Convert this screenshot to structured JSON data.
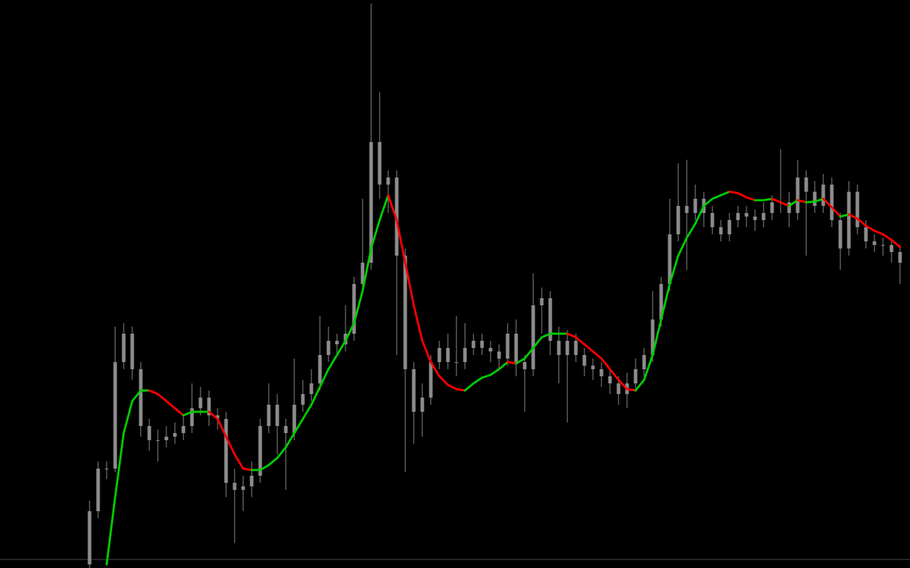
{
  "chart_data": {
    "type": "candlestick",
    "ylim": [
      0,
      800
    ],
    "candle_color": "#8c8c8c",
    "background": "#000000",
    "open": [
      5,
      80,
      140,
      140,
      290,
      330,
      280,
      200,
      180,
      180,
      185,
      190,
      200,
      225,
      240,
      215,
      210,
      120,
      110,
      115,
      130,
      200,
      230,
      200,
      190,
      230,
      245,
      260,
      300,
      320,
      315,
      330,
      400,
      430,
      600,
      540,
      550,
      440,
      280,
      220,
      240,
      290,
      310,
      290,
      290,
      310,
      320,
      310,
      305,
      295,
      330,
      290,
      280,
      370,
      380,
      320,
      300,
      320,
      300,
      285,
      280,
      270,
      260,
      245,
      260,
      280,
      300,
      350,
      400,
      470,
      510,
      500,
      520,
      500,
      480,
      470,
      490,
      500,
      495,
      490,
      500,
      515,
      515,
      500,
      550,
      530,
      510,
      540,
      490,
      450,
      530,
      480,
      460,
      455,
      455,
      445
    ],
    "high": [
      95,
      150,
      150,
      340,
      345,
      340,
      290,
      210,
      195,
      200,
      205,
      215,
      260,
      255,
      250,
      225,
      220,
      140,
      130,
      150,
      210,
      260,
      245,
      210,
      295,
      265,
      280,
      355,
      340,
      330,
      370,
      410,
      520,
      795,
      670,
      560,
      560,
      450,
      290,
      260,
      300,
      320,
      330,
      355,
      345,
      330,
      330,
      320,
      315,
      345,
      350,
      300,
      415,
      395,
      390,
      340,
      335,
      330,
      310,
      295,
      290,
      280,
      270,
      275,
      295,
      310,
      390,
      410,
      520,
      570,
      575,
      540,
      530,
      510,
      490,
      500,
      510,
      510,
      505,
      515,
      525,
      590,
      530,
      575,
      560,
      545,
      555,
      550,
      500,
      545,
      540,
      490,
      470,
      465,
      460,
      455
    ],
    "low": [
      0,
      70,
      125,
      135,
      280,
      265,
      185,
      165,
      150,
      170,
      175,
      180,
      190,
      215,
      200,
      195,
      100,
      35,
      80,
      100,
      120,
      190,
      160,
      110,
      180,
      220,
      235,
      250,
      290,
      300,
      305,
      320,
      390,
      420,
      520,
      500,
      300,
      135,
      175,
      185,
      230,
      280,
      280,
      270,
      280,
      300,
      300,
      290,
      280,
      285,
      270,
      220,
      270,
      330,
      300,
      260,
      205,
      290,
      270,
      265,
      255,
      245,
      230,
      225,
      250,
      270,
      290,
      340,
      390,
      460,
      420,
      490,
      480,
      470,
      460,
      460,
      480,
      480,
      475,
      480,
      490,
      500,
      480,
      490,
      440,
      500,
      500,
      480,
      420,
      440,
      470,
      450,
      445,
      440,
      430,
      400
    ],
    "close": [
      80,
      140,
      140,
      290,
      330,
      280,
      200,
      180,
      180,
      185,
      190,
      200,
      225,
      240,
      215,
      210,
      120,
      110,
      115,
      130,
      200,
      230,
      200,
      190,
      230,
      245,
      260,
      300,
      320,
      315,
      330,
      400,
      430,
      600,
      540,
      550,
      440,
      280,
      220,
      240,
      290,
      310,
      290,
      290,
      310,
      320,
      310,
      305,
      295,
      330,
      290,
      280,
      370,
      380,
      320,
      300,
      320,
      300,
      285,
      280,
      270,
      260,
      245,
      260,
      280,
      300,
      350,
      400,
      470,
      510,
      500,
      520,
      500,
      480,
      470,
      490,
      500,
      495,
      490,
      500,
      515,
      515,
      500,
      550,
      530,
      510,
      540,
      490,
      450,
      530,
      480,
      460,
      455,
      455,
      445,
      430
    ],
    "ma": {
      "up_color": "#00cc00",
      "down_color": "#ff0000",
      "values": [
        null,
        null,
        5,
        100,
        190,
        235,
        250,
        250,
        245,
        235,
        225,
        215,
        220,
        220,
        220,
        210,
        185,
        160,
        140,
        138,
        138,
        145,
        155,
        170,
        190,
        210,
        230,
        255,
        280,
        300,
        320,
        345,
        390,
        450,
        490,
        525,
        490,
        430,
        370,
        320,
        290,
        270,
        258,
        252,
        250,
        260,
        268,
        272,
        280,
        290,
        288,
        295,
        310,
        325,
        330,
        330,
        330,
        325,
        315,
        305,
        295,
        280,
        265,
        252,
        250,
        265,
        300,
        350,
        400,
        440,
        465,
        485,
        510,
        520,
        525,
        530,
        528,
        522,
        518,
        518,
        520,
        515,
        510,
        518,
        515,
        516,
        520,
        508,
        495,
        498,
        492,
        482,
        475,
        470,
        462,
        452
      ]
    },
    "level_line": {
      "value": 12,
      "color": "#4a4a4a"
    }
  }
}
